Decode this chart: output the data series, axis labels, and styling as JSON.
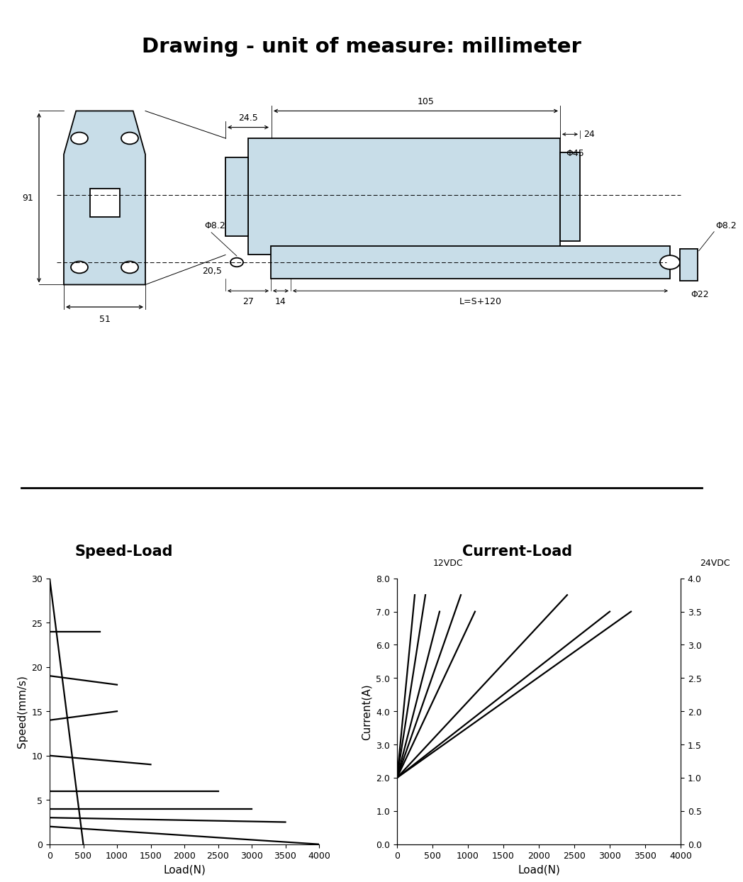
{
  "title": "Drawing - unit of measure: millimeter",
  "bg_color": "#ffffff",
  "drawing": {
    "fill_color": "#c8dde8",
    "outline_color": "#000000"
  },
  "speed_load": {
    "title": "Speed-Load",
    "xlabel": "Load(N)",
    "ylabel": "Speed(mm/s)",
    "xlim": [
      0,
      4000
    ],
    "ylim": [
      0,
      30
    ],
    "xticks": [
      0,
      500,
      1000,
      1500,
      2000,
      2500,
      3000,
      3500,
      4000
    ],
    "yticks": [
      0,
      5,
      10,
      15,
      20,
      25,
      30
    ],
    "lines": [
      [
        0,
        30,
        500,
        0
      ],
      [
        0,
        24,
        750,
        24
      ],
      [
        0,
        19,
        1000,
        18
      ],
      [
        0,
        14,
        1000,
        15
      ],
      [
        0,
        10,
        1500,
        9
      ],
      [
        0,
        6,
        2500,
        6
      ],
      [
        0,
        4,
        3000,
        4
      ],
      [
        0,
        3,
        3500,
        2.5
      ],
      [
        0,
        2,
        4000,
        0
      ]
    ]
  },
  "current_load": {
    "title": "Current-Load",
    "xlabel": "Load(N)",
    "ylabel": "Current(A)",
    "label_left": "12VDC",
    "label_right": "24VDC",
    "xlim": [
      0,
      4000
    ],
    "ylim": [
      0,
      8
    ],
    "ylim_right": [
      0,
      4
    ],
    "xticks": [
      0,
      500,
      1000,
      1500,
      2000,
      2500,
      3000,
      3500,
      4000
    ],
    "yticks_left": [
      0,
      1.0,
      2.0,
      3.0,
      4.0,
      5.0,
      6.0,
      7.0,
      8.0
    ],
    "yticks_right": [
      0.0,
      0.5,
      1.0,
      1.5,
      2.0,
      2.5,
      3.0,
      3.5,
      4.0
    ],
    "lines": [
      [
        0,
        2.0,
        250,
        7.5
      ],
      [
        0,
        2.0,
        400,
        7.5
      ],
      [
        0,
        2.0,
        600,
        7.0
      ],
      [
        0,
        2.0,
        900,
        7.5
      ],
      [
        0,
        2.0,
        1100,
        7.0
      ],
      [
        0,
        2.0,
        2400,
        7.5
      ],
      [
        0,
        2.0,
        3000,
        7.0
      ],
      [
        0,
        2.0,
        3300,
        7.0
      ]
    ]
  }
}
